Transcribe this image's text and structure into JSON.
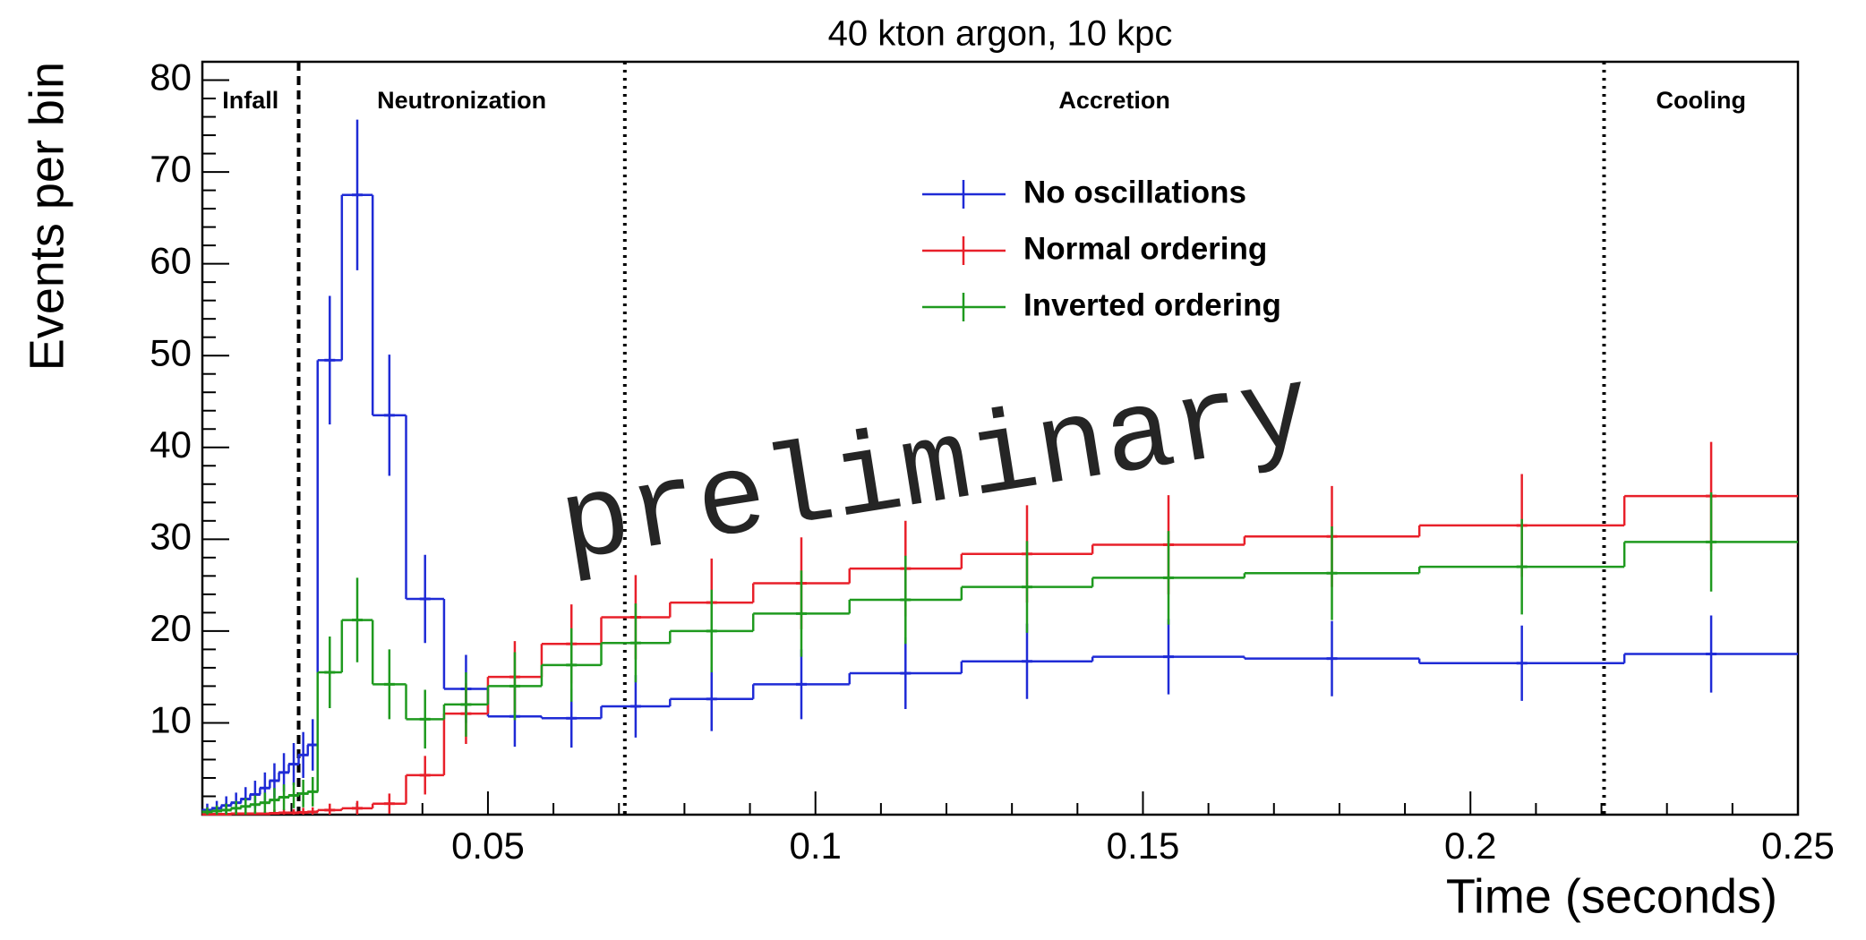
{
  "chart_data": {
    "type": "step_histogram",
    "title": "40 kton argon, 10 kpc",
    "xlabel": "Time (seconds)",
    "ylabel": "Events per bin",
    "watermark": "preliminary",
    "xlim": [
      0.0064,
      0.25
    ],
    "ylim": [
      0,
      82
    ],
    "xticks": [
      0.05,
      0.1,
      0.15,
      0.2,
      0.25
    ],
    "xminorticks": [
      0.01,
      0.02,
      0.03,
      0.04,
      0.06,
      0.07,
      0.08,
      0.09,
      0.11,
      0.12,
      0.13,
      0.14,
      0.16,
      0.17,
      0.18,
      0.19,
      0.21,
      0.22,
      0.23,
      0.24
    ],
    "yticks": [
      10,
      20,
      30,
      40,
      50,
      60,
      70,
      80
    ],
    "yminorticks": [
      2,
      4,
      6,
      8,
      12,
      14,
      16,
      18,
      22,
      24,
      26,
      28,
      32,
      34,
      36,
      38,
      42,
      44,
      46,
      48,
      52,
      54,
      56,
      58,
      62,
      64,
      66,
      68,
      72,
      74,
      76,
      78,
      82
    ],
    "bins": [
      0.0064,
      0.0079,
      0.0093,
      0.0108,
      0.0123,
      0.0137,
      0.0152,
      0.0167,
      0.0181,
      0.0196,
      0.0211,
      0.0225,
      0.024,
      0.0277,
      0.0324,
      0.0375,
      0.0433,
      0.05,
      0.0582,
      0.0673,
      0.0778,
      0.0905,
      0.1052,
      0.1223,
      0.1423,
      0.1655,
      0.1922,
      0.2235,
      0.25
    ],
    "phases": [
      {
        "name": "Infall",
        "x": 0.0064,
        "end": 0.0211,
        "style": "dashed"
      },
      {
        "name": "Neutronization",
        "x": 0.0211,
        "end": 0.0709,
        "style": "dotted"
      },
      {
        "name": "Accretion",
        "x": 0.0709,
        "end": 0.2204,
        "style": "dotted"
      },
      {
        "name": "Cooling",
        "x": 0.2204,
        "end": 0.25
      }
    ],
    "series": [
      {
        "name": "No oscillations",
        "color": "#1f2bd6",
        "values": [
          0.5,
          0.7,
          1.0,
          1.3,
          1.7,
          2.2,
          2.9,
          3.7,
          4.6,
          5.5,
          6.5,
          7.6,
          49.5,
          67.5,
          43.5,
          23.5,
          13.7,
          10.7,
          10.5,
          11.8,
          12.6,
          14.2,
          15.4,
          16.7,
          17.2,
          17.0,
          16.5,
          17.5
        ],
        "errors": [
          0.7,
          0.8,
          1.0,
          1.1,
          1.3,
          1.5,
          1.7,
          1.9,
          2.1,
          2.3,
          2.5,
          2.8,
          7.0,
          8.2,
          6.6,
          4.8,
          3.7,
          3.3,
          3.2,
          3.4,
          3.5,
          3.8,
          3.9,
          4.1,
          4.1,
          4.1,
          4.1,
          4.2
        ]
      },
      {
        "name": "Normal ordering",
        "color": "#e8202a",
        "values": [
          0.05,
          0.05,
          0.05,
          0.1,
          0.1,
          0.1,
          0.1,
          0.15,
          0.2,
          0.2,
          0.25,
          0.3,
          0.5,
          0.7,
          1.2,
          4.3,
          11,
          15,
          18.6,
          21.5,
          23.1,
          25.2,
          26.8,
          28.4,
          29.4,
          30.3,
          31.5,
          34.7
        ],
        "errors": [
          0.2,
          0.2,
          0.2,
          0.3,
          0.3,
          0.3,
          0.3,
          0.4,
          0.4,
          0.4,
          0.5,
          0.5,
          0.7,
          0.8,
          1.1,
          2.1,
          3.3,
          3.9,
          4.3,
          4.6,
          4.8,
          5.0,
          5.2,
          5.3,
          5.4,
          5.5,
          5.6,
          5.9
        ]
      },
      {
        "name": "Inverted ordering",
        "color": "#1f9a1f",
        "values": [
          0.3,
          0.4,
          0.5,
          0.7,
          0.9,
          1.1,
          1.3,
          1.6,
          1.9,
          2.1,
          2.3,
          2.5,
          15.5,
          21.2,
          14.2,
          10.4,
          12,
          14,
          16.3,
          18.7,
          20,
          21.9,
          23.4,
          24.8,
          25.8,
          26.3,
          27,
          29.7
        ],
        "errors": [
          0.5,
          0.6,
          0.7,
          0.8,
          0.9,
          1.0,
          1.1,
          1.3,
          1.4,
          1.4,
          1.5,
          1.6,
          3.9,
          4.6,
          3.8,
          3.2,
          3.5,
          3.7,
          4.0,
          4.3,
          4.5,
          4.7,
          4.8,
          5.0,
          5.1,
          5.1,
          5.2,
          5.4
        ]
      }
    ]
  }
}
